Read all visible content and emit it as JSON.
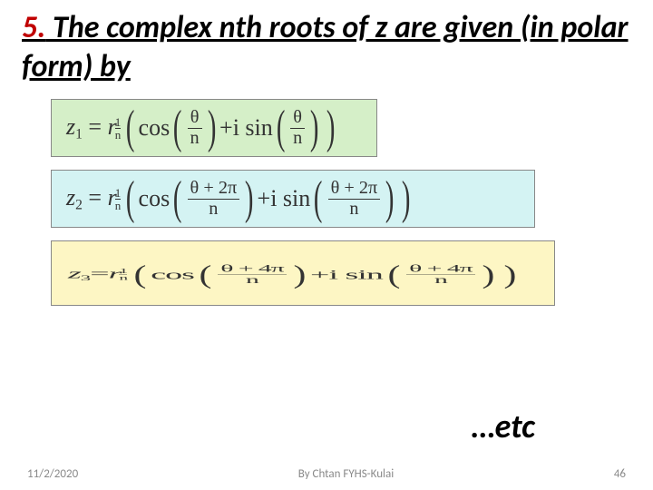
{
  "title": {
    "num": "5.",
    "text": " The complex nth roots of z are given (in polar form) by"
  },
  "formula1": {
    "lhs_var": "z",
    "lhs_sub": "1",
    "rvar": "r",
    "sup_num": "1",
    "sup_den": "n",
    "cos": "cos",
    "isin": "i sin",
    "arg1_num": "θ",
    "arg1_den": "n",
    "arg2_num": "θ",
    "arg2_den": "n",
    "bg": "#d5efc8"
  },
  "formula2": {
    "lhs_var": "z",
    "lhs_sub": "2",
    "rvar": "r",
    "sup_num": "1",
    "sup_den": "n",
    "cos": "cos",
    "isin": "i sin",
    "arg1_num": "θ + 2π",
    "arg1_den": "n",
    "arg2_num": "θ + 2π",
    "arg2_den": "n",
    "bg": "#d4f3f3"
  },
  "formula3": {
    "lhs_var": "z",
    "lhs_sub": "3",
    "rvar": "r",
    "sup_num": "1",
    "sup_den": "n",
    "cos": "cos",
    "isin": "i sin",
    "arg1_num": "θ + 4π",
    "arg1_den": "n",
    "arg2_num": "θ + 4π",
    "arg2_den": "n",
    "bg": "#fdf6c4"
  },
  "etc": "…etc",
  "footer": {
    "date": "11/2/2020",
    "author": "By Chtan   FYHS-Kulai",
    "page": "46"
  },
  "colors": {
    "accent": "#c00000",
    "text": "#000000",
    "footer": "#8a8a8a"
  }
}
